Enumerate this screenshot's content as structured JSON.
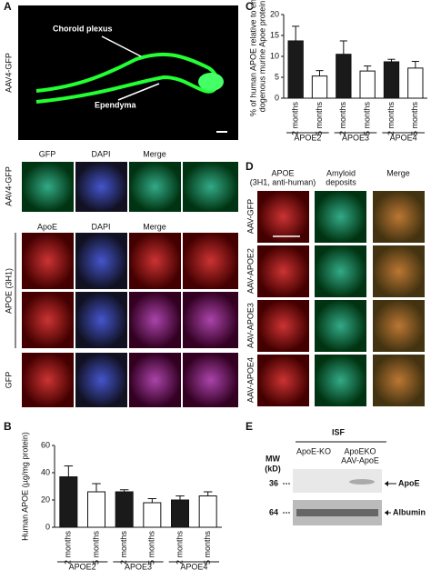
{
  "panel_labels": [
    "A",
    "B",
    "C",
    "D",
    "E"
  ],
  "panel_a": {
    "side_label": "AAV4-GFP",
    "annotations": [
      "Choroid plexus",
      "Ependyma"
    ],
    "column_headers": [
      "GFP",
      "DAPI",
      "Merge"
    ],
    "second_headers": [
      "ApoE",
      "DAPI",
      "Merge"
    ],
    "row_labels": [
      "AAV4-GFP",
      "APOE (3H1)",
      "GFP"
    ]
  },
  "chart_data": [
    {
      "type": "bar",
      "y_label": [
        "Human APOE (µg/mg protein)"
      ],
      "categories": [
        "2 months",
        "5 months",
        "2 months",
        "5 months",
        "2 months",
        "5 months"
      ],
      "groups": [
        "APOE2",
        "APOE3",
        "APOE4"
      ],
      "values": [
        37,
        26,
        26,
        18,
        20,
        23
      ],
      "errors": [
        8,
        6,
        1.5,
        3,
        3,
        3
      ],
      "colors": [
        "#1a1a1a",
        "#ffffff",
        "#1a1a1a",
        "#ffffff",
        "#1a1a1a",
        "#ffffff"
      ],
      "ylim": [
        0,
        60
      ],
      "yticks": [
        0,
        20,
        40,
        60
      ]
    },
    {
      "type": "bar",
      "y_label": [
        "% of human APOE relative to en-",
        "dogenous murine Apoe protein"
      ],
      "categories": [
        "2 months",
        "5 months",
        "2 months",
        "5 months",
        "2 months",
        "5 months"
      ],
      "groups": [
        "APOE2",
        "APOE3",
        "APOE4"
      ],
      "values": [
        13.7,
        5.3,
        10.5,
        6.5,
        8.7,
        7.2
      ],
      "errors": [
        3.5,
        1.3,
        3.2,
        1.2,
        0.6,
        1.6
      ],
      "colors": [
        "#1a1a1a",
        "#ffffff",
        "#1a1a1a",
        "#ffffff",
        "#1a1a1a",
        "#ffffff"
      ],
      "ylim": [
        0,
        20
      ],
      "yticks": [
        0,
        5,
        10,
        15,
        20
      ]
    }
  ],
  "panel_d": {
    "column_headers": [
      [
        "APOE",
        "(3H1, anti-human)"
      ],
      [
        "Amyloid",
        "deposits"
      ],
      [
        "Merge"
      ]
    ],
    "row_labels": [
      "AAV-GFP",
      "AAV-APOE2",
      "AAV-APOE3",
      "AAV-APOE4"
    ]
  },
  "panel_e": {
    "header": "ISF",
    "columns": [
      [
        "ApoE-KO"
      ],
      [
        "ApoEKO",
        "AAV-ApoE"
      ]
    ],
    "mw_label": [
      "MW",
      "(kD)"
    ],
    "markers": [
      "36",
      "64"
    ],
    "bands": [
      "ApoE",
      "Albumin"
    ]
  }
}
